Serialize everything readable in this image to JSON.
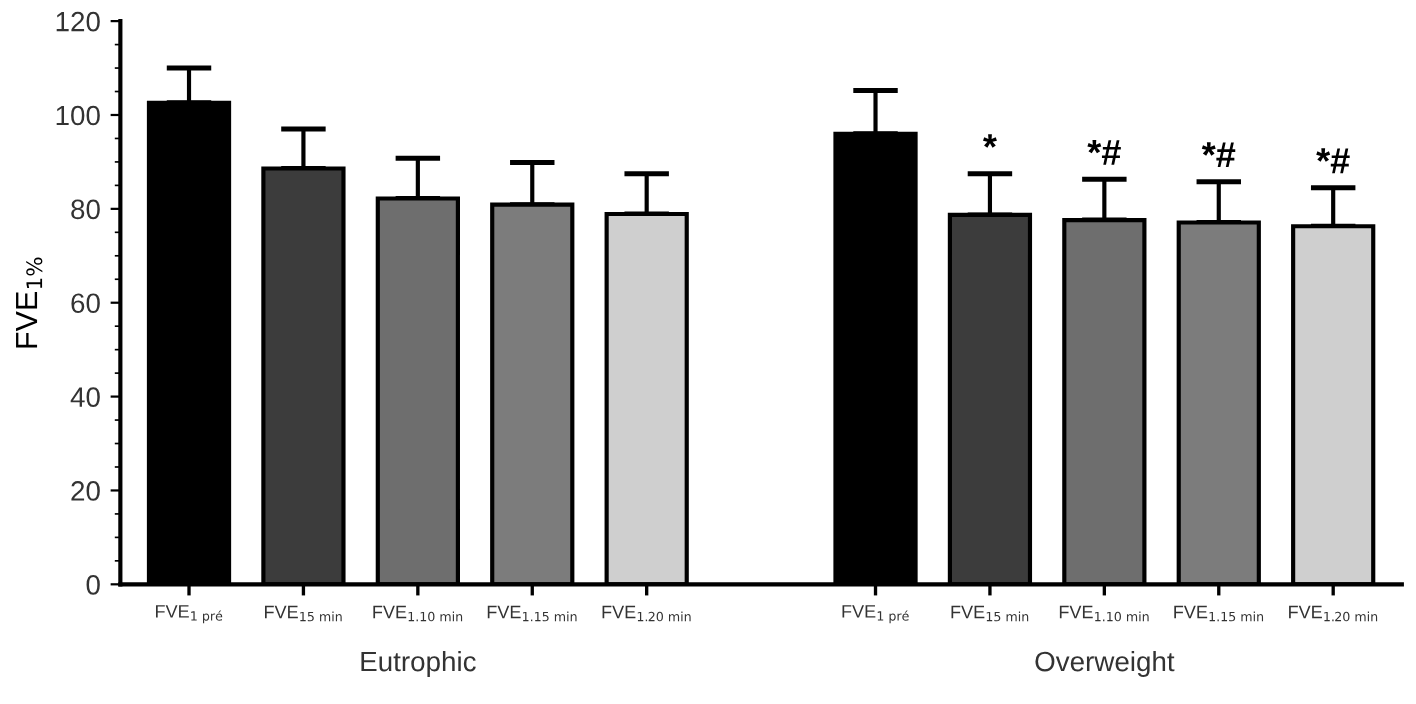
{
  "chart_data": {
    "type": "bar",
    "ylabel": "FVE$_{1%}$",
    "categories": [
      "FVE$_{1 pré}$",
      "FVE$_{15 min}$",
      "FVE$_{1.10 min}$",
      "FVE$_{1.15 min}$",
      "FVE$_{1.20 min}$",
      null,
      "FVE$_{1 pré}$",
      "FVE$_{15 min}$",
      "FVE$_{1.10 min}$",
      "FVE$_{1.15 min}$",
      "FVE$_{1.20 min}$"
    ],
    "series": [
      {
        "values": [
          102.6,
          88.6,
          82.2,
          80.9,
          78.9,
          null,
          96,
          78.7,
          77.6,
          77.1,
          76.3
        ],
        "colors": [
          "#000000",
          "#3c3c3c",
          "#6e6e6e",
          "#7c7c7c",
          "#cfcfcf",
          null,
          "#000000",
          "#3c3c3c",
          "#6e6e6e",
          "#7c7c7c",
          "#cfcfcf"
        ],
        "errors": [
          [
            102.6,
            110
          ],
          [
            88.6,
            97
          ],
          [
            82.2,
            90.8
          ],
          [
            80.9,
            89.9
          ],
          [
            78.9,
            87.5
          ],
          null,
          [
            96,
            105.2
          ],
          [
            78.7,
            87.5
          ],
          [
            77.6,
            86.3
          ],
          [
            77.1,
            85.8
          ],
          [
            76.3,
            84.5
          ]
        ],
        "value_labels": [
          null,
          null,
          null,
          null,
          null,
          null,
          null,
          "*",
          "*#",
          "*#",
          "*#"
        ]
      }
    ],
    "annotations": [
      "Eutrophic",
      "Overweight"
    ],
    "ylim": [
      0,
      120
    ],
    "yticks": [
      0,
      20,
      40,
      60,
      80,
      100,
      120
    ],
    "grid": false
  }
}
